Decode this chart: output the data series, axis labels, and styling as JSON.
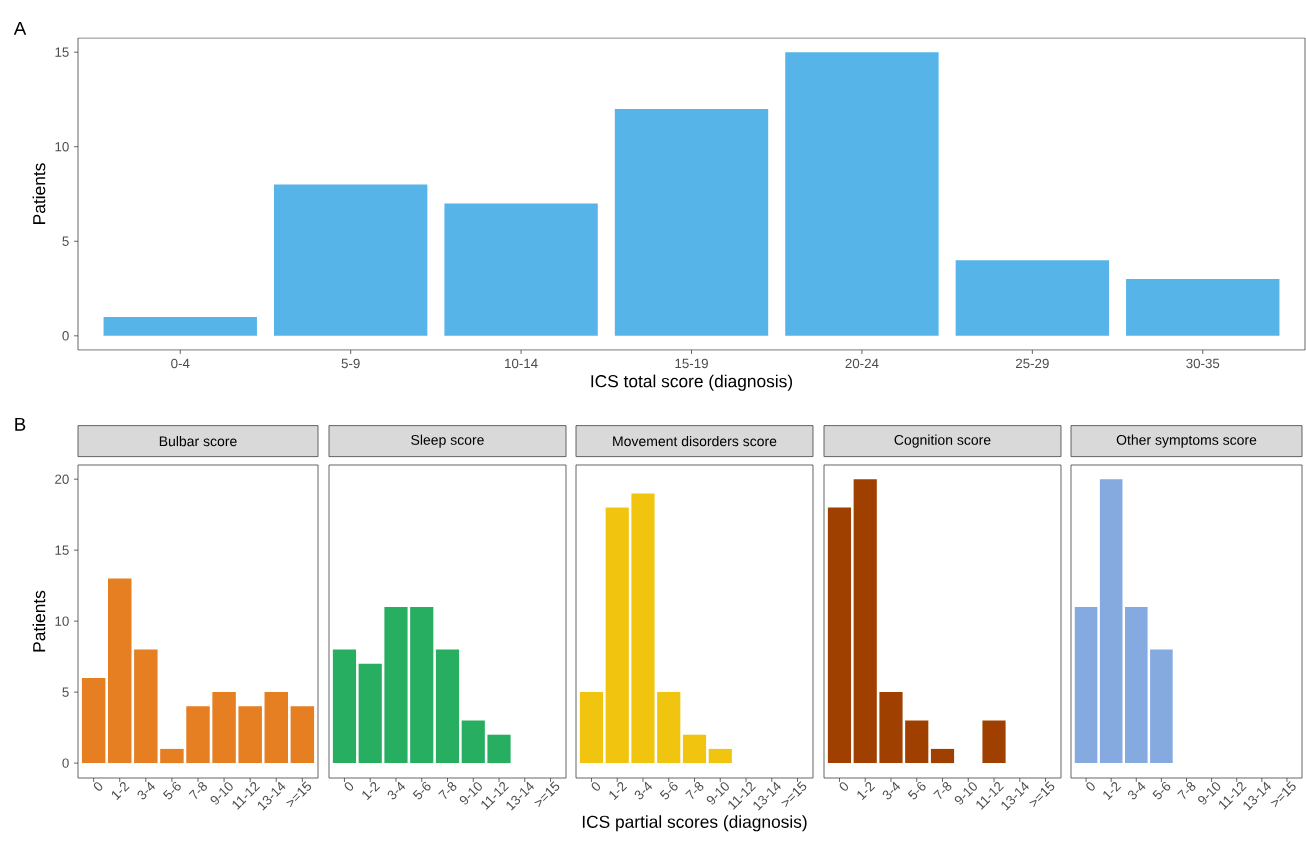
{
  "chart_data": [
    {
      "type": "bar",
      "annotations": [
        "A"
      ],
      "xlabel": "ICS total score (diagnosis)",
      "ylabel": "Patients",
      "categories": [
        "0-4",
        "5-9",
        "10-14",
        "15-19",
        "20-24",
        "25-29",
        "30-35"
      ],
      "values": [
        1,
        8,
        7,
        12,
        15,
        4,
        3
      ],
      "color": "#56b4e9",
      "ylim": [
        -0.75,
        15.75
      ],
      "yticks": [
        0,
        5,
        10,
        15
      ]
    },
    {
      "type": "bar",
      "annotations": [
        "B"
      ],
      "title": "Bulbar score",
      "ylabel": "Patients",
      "categories": [
        "0",
        "1-2",
        "3-4",
        "5-6",
        "7-8",
        "9-10",
        "11-12",
        "13-14",
        ">=15"
      ],
      "values": [
        6,
        13,
        8,
        1,
        4,
        5,
        4,
        5,
        4
      ],
      "color": "#e67e22",
      "ylim": [
        -1.05,
        21
      ],
      "yticks": [
        0,
        5,
        10,
        15,
        20
      ]
    },
    {
      "type": "bar",
      "title": "Sleep score",
      "categories": [
        "0",
        "1-2",
        "3-4",
        "5-6",
        "7-8",
        "9-10",
        "11-12",
        "13-14",
        ">=15"
      ],
      "values": [
        8,
        7,
        11,
        11,
        8,
        3,
        2,
        0,
        0
      ],
      "color": "#27ae60",
      "ylim": [
        -1.05,
        21
      ],
      "tick_labels": "x"
    },
    {
      "type": "bar",
      "title": "Movement disorders score",
      "xlabel": "ICS partial scores (diagnosis)",
      "categories": [
        "0",
        "1-2",
        "3-4",
        "5-6",
        "7-8",
        "9-10",
        "11-12",
        "13-14",
        ">=15"
      ],
      "values": [
        5,
        18,
        19,
        5,
        2,
        1,
        0,
        0,
        0
      ],
      "color": "#f1c40f",
      "ylim": [
        -1.05,
        21
      ],
      "tick_labels": "x"
    },
    {
      "type": "bar",
      "title": "Cognition score",
      "categories": [
        "0",
        "1-2",
        "3-4",
        "5-6",
        "7-8",
        "9-10",
        "11-12",
        "13-14",
        ">=15"
      ],
      "values": [
        18,
        20,
        5,
        3,
        1,
        0,
        3,
        0,
        0
      ],
      "color": "#a04000",
      "ylim": [
        -1.05,
        21
      ],
      "tick_labels": "x"
    },
    {
      "type": "bar",
      "title": "Other symptoms score",
      "categories": [
        "0",
        "1-2",
        "3-4",
        "5-6",
        "7-8",
        "9-10",
        "11-12",
        "13-14",
        ">=15"
      ],
      "values": [
        11,
        20,
        11,
        8,
        0,
        0,
        0,
        0,
        0
      ],
      "color": "#85aadf",
      "ylim": [
        -1.05,
        21
      ],
      "tick_labels": "x"
    }
  ]
}
